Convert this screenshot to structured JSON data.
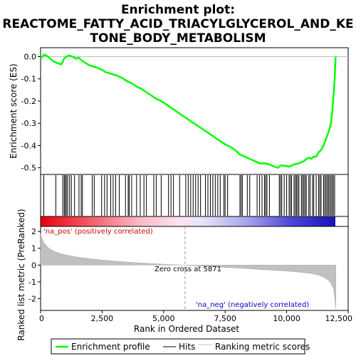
{
  "chart_data": {
    "type": "line",
    "title_lines": [
      "Enrichment plot:",
      "REACTOME_FATTY_ACID_TRIACYLGLYCEROL_AND_KE",
      "TONE_BODY_METABOLISM"
    ],
    "top_panel": {
      "ylabel": "Enrichment score (ES)",
      "ylim": [
        -0.53,
        0.04
      ],
      "yticks": [
        0.0,
        -0.1,
        -0.2,
        -0.3,
        -0.4,
        -0.5
      ],
      "ytick_labels": [
        "0.0",
        "-0.1",
        "-0.2",
        "-0.3",
        "-0.4",
        "-0.5"
      ],
      "series": [
        {
          "name": "Enrichment profile",
          "color": "#00ff00",
          "x": [
            0,
            150,
            300,
            500,
            700,
            850,
            950,
            1050,
            1150,
            1300,
            1450,
            1550,
            1700,
            1850,
            2000,
            2150,
            2300,
            2500,
            2650,
            2800,
            2950,
            3100,
            3300,
            3500,
            3700,
            3900,
            4100,
            4300,
            4500,
            4700,
            4900,
            5100,
            5300,
            5500,
            5700,
            5900,
            6100,
            6300,
            6500,
            6700,
            6900,
            7100,
            7300,
            7500,
            7700,
            7900,
            8100,
            8300,
            8500,
            8700,
            8900,
            9100,
            9300,
            9500,
            9650,
            9750,
            9900,
            10100,
            10300,
            10500,
            10700,
            10800,
            10900,
            11000,
            11100,
            11200,
            11300,
            11400,
            11500,
            11600,
            11700,
            11800,
            11850,
            11900,
            11950,
            11990
          ],
          "y": [
            -0.01,
            0.01,
            0.0,
            -0.02,
            -0.03,
            -0.035,
            -0.01,
            0.0,
            0.005,
            0.0,
            -0.01,
            -0.005,
            -0.02,
            -0.03,
            -0.04,
            -0.045,
            -0.05,
            -0.06,
            -0.07,
            -0.075,
            -0.08,
            -0.085,
            -0.095,
            -0.11,
            -0.12,
            -0.135,
            -0.145,
            -0.16,
            -0.175,
            -0.19,
            -0.2,
            -0.215,
            -0.23,
            -0.245,
            -0.26,
            -0.275,
            -0.29,
            -0.305,
            -0.32,
            -0.335,
            -0.35,
            -0.365,
            -0.38,
            -0.395,
            -0.405,
            -0.42,
            -0.44,
            -0.45,
            -0.46,
            -0.47,
            -0.48,
            -0.48,
            -0.485,
            -0.495,
            -0.5,
            -0.49,
            -0.49,
            -0.495,
            -0.485,
            -0.48,
            -0.47,
            -0.46,
            -0.455,
            -0.46,
            -0.45,
            -0.45,
            -0.43,
            -0.42,
            -0.4,
            -0.37,
            -0.34,
            -0.3,
            -0.25,
            -0.18,
            -0.1,
            0.0
          ]
        }
      ]
    },
    "hits": {
      "name": "Hits",
      "positions": [
        130,
        620,
        900,
        960,
        1000,
        1050,
        1100,
        1180,
        1250,
        1380,
        1560,
        1650,
        1700,
        2100,
        2180,
        2480,
        2600,
        2700,
        2850,
        2950,
        3050,
        3200,
        3450,
        3560,
        3600,
        3700,
        3900,
        4050,
        4200,
        4300,
        4600,
        4700,
        4900,
        5200,
        5300,
        5400,
        5650,
        5900,
        6000,
        6100,
        6200,
        6300,
        6400,
        6500,
        6700,
        6800,
        6900,
        7000,
        7100,
        7200,
        7300,
        7450,
        7500,
        7600,
        8100,
        8150,
        8200,
        8400,
        8500,
        8800,
        8900,
        9000,
        9100,
        9150,
        9200,
        9300,
        9700,
        9750,
        9800,
        9900,
        10000,
        10100,
        10150,
        10200,
        10300,
        10350,
        10400,
        10450,
        10500,
        10600,
        10650,
        10700,
        10750,
        10800,
        10900,
        10950,
        11050,
        11100,
        11200,
        11300,
        11350,
        11400,
        11500,
        11550,
        11600,
        11650,
        11700,
        11750,
        11800,
        11850,
        11900,
        11950
      ]
    },
    "rank_panel": {
      "ylabel": "Ranked list metric (PreRanked)",
      "xlabel": "Rank in Ordered Dataset",
      "ylim": [
        -2.7,
        2.3
      ],
      "yticks": [
        2,
        1,
        0,
        -1,
        -2
      ],
      "ytick_labels": [
        "2",
        "1",
        "0",
        "-1",
        "-2"
      ],
      "xlim": [
        0,
        12500
      ],
      "xticks": [
        0,
        2500,
        5000,
        7500,
        10000,
        12500
      ],
      "xtick_labels": [
        "0",
        "2,500",
        "5,000",
        "7,500",
        "10,000",
        "12,500"
      ],
      "series": [
        {
          "name": "Ranking metric scores",
          "color": "#c0c0c0",
          "x": [
            0,
            50,
            150,
            300,
            500,
            800,
            1200,
            1600,
            2000,
            2500,
            3000,
            3500,
            4000,
            4500,
            5000,
            5500,
            5871,
            6500,
            7000,
            7500,
            8000,
            8500,
            9000,
            9500,
            10000,
            10500,
            11000,
            11300,
            11500,
            11700,
            11800,
            11900,
            11950,
            12000
          ],
          "y": [
            1.85,
            1.6,
            1.3,
            1.05,
            0.85,
            0.68,
            0.55,
            0.45,
            0.38,
            0.3,
            0.24,
            0.18,
            0.13,
            0.09,
            0.05,
            0.02,
            0.0,
            -0.05,
            -0.1,
            -0.14,
            -0.18,
            -0.22,
            -0.27,
            -0.31,
            -0.36,
            -0.42,
            -0.5,
            -0.6,
            -0.72,
            -0.9,
            -1.1,
            -1.4,
            -1.9,
            -2.6
          ]
        }
      ],
      "zero_cross": 5871,
      "zero_cross_label": "Zero cross at 5871",
      "pos_label": "'na_pos' (positively correlated)",
      "neg_label": "'na_neg' (negatively correlated)",
      "pos_color": "#cc0000",
      "neg_color": "#0000cc"
    },
    "legend": {
      "placement": "bottom",
      "items": [
        {
          "label": "Enrichment profile",
          "color": "#00ff00"
        },
        {
          "label": "Hits",
          "color": "#000000"
        },
        {
          "label": "Ranking metric scores",
          "color": "#c0c0c0"
        }
      ]
    }
  }
}
